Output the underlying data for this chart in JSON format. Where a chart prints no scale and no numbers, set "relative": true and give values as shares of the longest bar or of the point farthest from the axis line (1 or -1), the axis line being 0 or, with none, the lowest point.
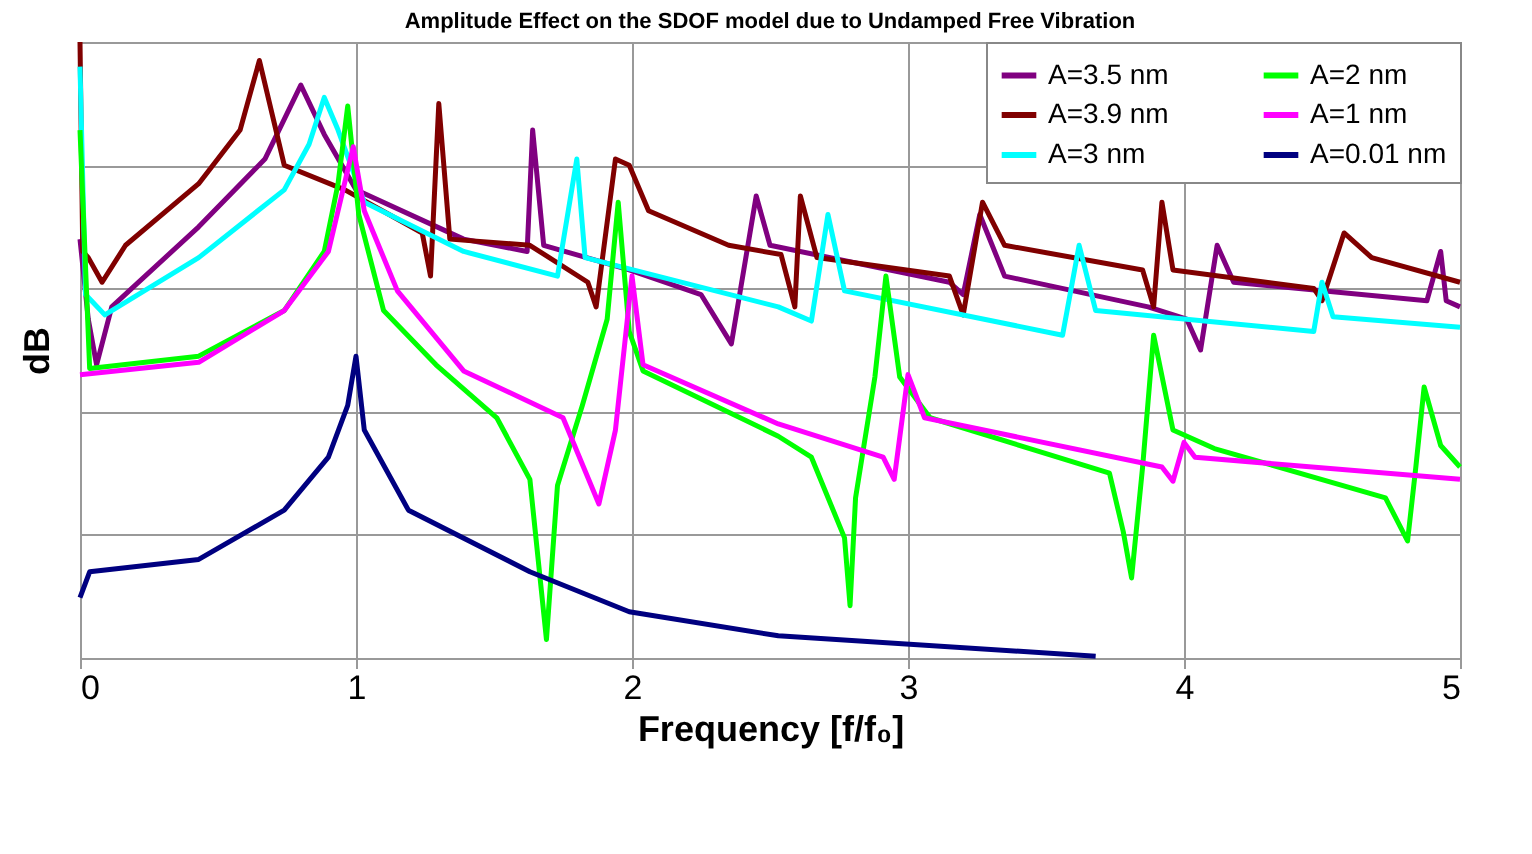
{
  "chart_data": {
    "type": "line",
    "title": "Amplitude Effect on the SDOF model due to Undamped Free Vibration",
    "xlabel": "Frequency [f/f₀]",
    "ylabel": "dB",
    "relative": true,
    "xlim": [
      0,
      5
    ],
    "xticks": [
      0,
      1,
      2,
      3,
      4,
      5
    ],
    "grid": true,
    "legend": "top right",
    "marker": "none",
    "line_style": "solid",
    "series": [
      {
        "name": "A=3.5 nm",
        "color": "#800080",
        "x": [
          0,
          0.03,
          0.06,
          0.115,
          0.43,
          0.67,
          0.8,
          0.885,
          1.0,
          1.39,
          1.62,
          1.64,
          1.68,
          1.99,
          2.25,
          2.36,
          2.45,
          2.5,
          3.15,
          3.2,
          3.26,
          3.35,
          3.87,
          4.01,
          4.06,
          4.12,
          4.18,
          4.88,
          4.93,
          4.95,
          5.0
        ],
        "values": [
          0.68,
          0.55,
          0.476,
          0.57,
          0.7,
          0.81,
          0.93,
          0.85,
          0.76,
          0.68,
          0.66,
          0.857,
          0.67,
          0.63,
          0.59,
          0.51,
          0.75,
          0.67,
          0.61,
          0.59,
          0.72,
          0.62,
          0.57,
          0.55,
          0.5,
          0.67,
          0.61,
          0.58,
          0.66,
          0.58,
          0.57
        ]
      },
      {
        "name": "A=3.9 nm",
        "color": "#800000",
        "x": [
          0,
          0.01,
          0.03,
          0.08,
          0.165,
          0.43,
          0.58,
          0.65,
          0.74,
          0.96,
          1.24,
          1.27,
          1.3,
          1.34,
          1.63,
          1.84,
          1.87,
          1.94,
          1.99,
          2.06,
          2.35,
          2.54,
          2.59,
          2.61,
          2.67,
          3.15,
          3.2,
          3.27,
          3.35,
          3.85,
          3.89,
          3.92,
          3.96,
          4.47,
          4.5,
          4.58,
          4.68,
          5.0
        ],
        "values": [
          1.0,
          0.66,
          0.65,
          0.61,
          0.67,
          0.77,
          0.857,
          0.97,
          0.8,
          0.76,
          0.69,
          0.62,
          0.9,
          0.68,
          0.67,
          0.61,
          0.57,
          0.81,
          0.8,
          0.726,
          0.67,
          0.655,
          0.57,
          0.75,
          0.65,
          0.62,
          0.557,
          0.74,
          0.67,
          0.63,
          0.57,
          0.74,
          0.63,
          0.6,
          0.58,
          0.69,
          0.65,
          0.61
        ]
      },
      {
        "name": "A=3 nm",
        "color": "#00ffff",
        "x": [
          0,
          0.02,
          0.09,
          0.43,
          0.74,
          0.83,
          0.885,
          0.935,
          1.03,
          1.39,
          1.73,
          1.8,
          1.83,
          2.53,
          2.65,
          2.71,
          2.77,
          3.56,
          3.62,
          3.68,
          4.47,
          4.5,
          4.54,
          5.0
        ],
        "values": [
          0.96,
          0.59,
          0.557,
          0.65,
          0.76,
          0.834,
          0.91,
          0.857,
          0.74,
          0.66,
          0.62,
          0.81,
          0.65,
          0.57,
          0.547,
          0.72,
          0.596,
          0.524,
          0.67,
          0.564,
          0.53,
          0.61,
          0.554,
          0.537
        ]
      },
      {
        "name": "A=2 nm",
        "color": "#00ff00",
        "x": [
          0,
          0.035,
          0.43,
          0.74,
          0.885,
          0.935,
          0.97,
          1.01,
          1.1,
          1.29,
          1.51,
          1.63,
          1.69,
          1.73,
          1.82,
          1.91,
          1.95,
          1.99,
          2.04,
          2.53,
          2.65,
          2.77,
          2.79,
          2.81,
          2.88,
          2.92,
          2.97,
          3.08,
          3.73,
          3.78,
          3.81,
          3.85,
          3.89,
          3.96,
          4.11,
          4.73,
          4.81,
          4.84,
          4.87,
          4.93,
          5.0
        ],
        "values": [
          0.857,
          0.47,
          0.49,
          0.564,
          0.66,
          0.77,
          0.896,
          0.72,
          0.564,
          0.476,
          0.39,
          0.29,
          0.03,
          0.28,
          0.41,
          0.55,
          0.74,
          0.53,
          0.466,
          0.36,
          0.326,
          0.195,
          0.085,
          0.26,
          0.456,
          0.62,
          0.456,
          0.39,
          0.3,
          0.205,
          0.13,
          0.31,
          0.524,
          0.37,
          0.34,
          0.26,
          0.19,
          0.31,
          0.44,
          0.345,
          0.31
        ]
      },
      {
        "name": "A=1 nm",
        "color": "#ff00ff",
        "x": [
          0,
          0.43,
          0.74,
          0.9,
          0.99,
          1.03,
          1.15,
          1.39,
          1.75,
          1.88,
          1.94,
          2.0,
          2.04,
          2.53,
          2.91,
          2.95,
          3.0,
          3.06,
          3.92,
          3.96,
          4.0,
          4.04,
          5.0
        ],
        "values": [
          0.46,
          0.48,
          0.564,
          0.66,
          0.83,
          0.726,
          0.596,
          0.466,
          0.39,
          0.25,
          0.37,
          0.62,
          0.476,
          0.38,
          0.326,
          0.29,
          0.46,
          0.39,
          0.31,
          0.287,
          0.35,
          0.326,
          0.29
        ]
      },
      {
        "name": "A=0.01 nm",
        "color": "#000080",
        "x": [
          0,
          0.035,
          0.43,
          0.74,
          0.9,
          0.97,
          1.0,
          1.03,
          1.19,
          1.63,
          1.99,
          2.53,
          3.68
        ],
        "values": [
          0.098,
          0.14,
          0.16,
          0.24,
          0.326,
          0.41,
          0.49,
          0.37,
          0.24,
          0.14,
          0.075,
          0.036,
          0.003
        ]
      }
    ]
  }
}
